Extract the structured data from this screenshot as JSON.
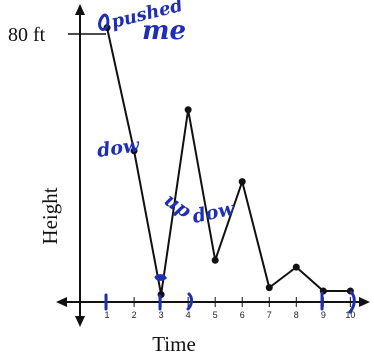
{
  "chart_data": {
    "type": "line",
    "xlabel": "Time",
    "ylabel": "Height",
    "x": [
      1,
      2,
      3,
      4,
      5,
      6,
      7,
      8,
      9,
      10
    ],
    "series": [
      {
        "values": [
          80,
          44,
          2,
          56,
          12,
          35,
          4,
          10,
          3,
          3
        ]
      }
    ],
    "xlim": [
      0,
      10.8
    ],
    "ylim": [
      -4,
      84
    ],
    "y_ticks": [
      {
        "value": 80,
        "label": "80 ft"
      }
    ],
    "x_ticks": [
      "1",
      "2",
      "3",
      "4",
      "5",
      "6",
      "7",
      "8",
      "9",
      "10"
    ],
    "grid": false,
    "legend": "none",
    "annotations": {
      "pushed": "pushed",
      "me": "me",
      "down1": "dow",
      "up": "up",
      "down2": "dow"
    },
    "colors": {
      "line": "#111111",
      "axis": "#111111",
      "annotation_ink": "#1f2fb5"
    }
  }
}
